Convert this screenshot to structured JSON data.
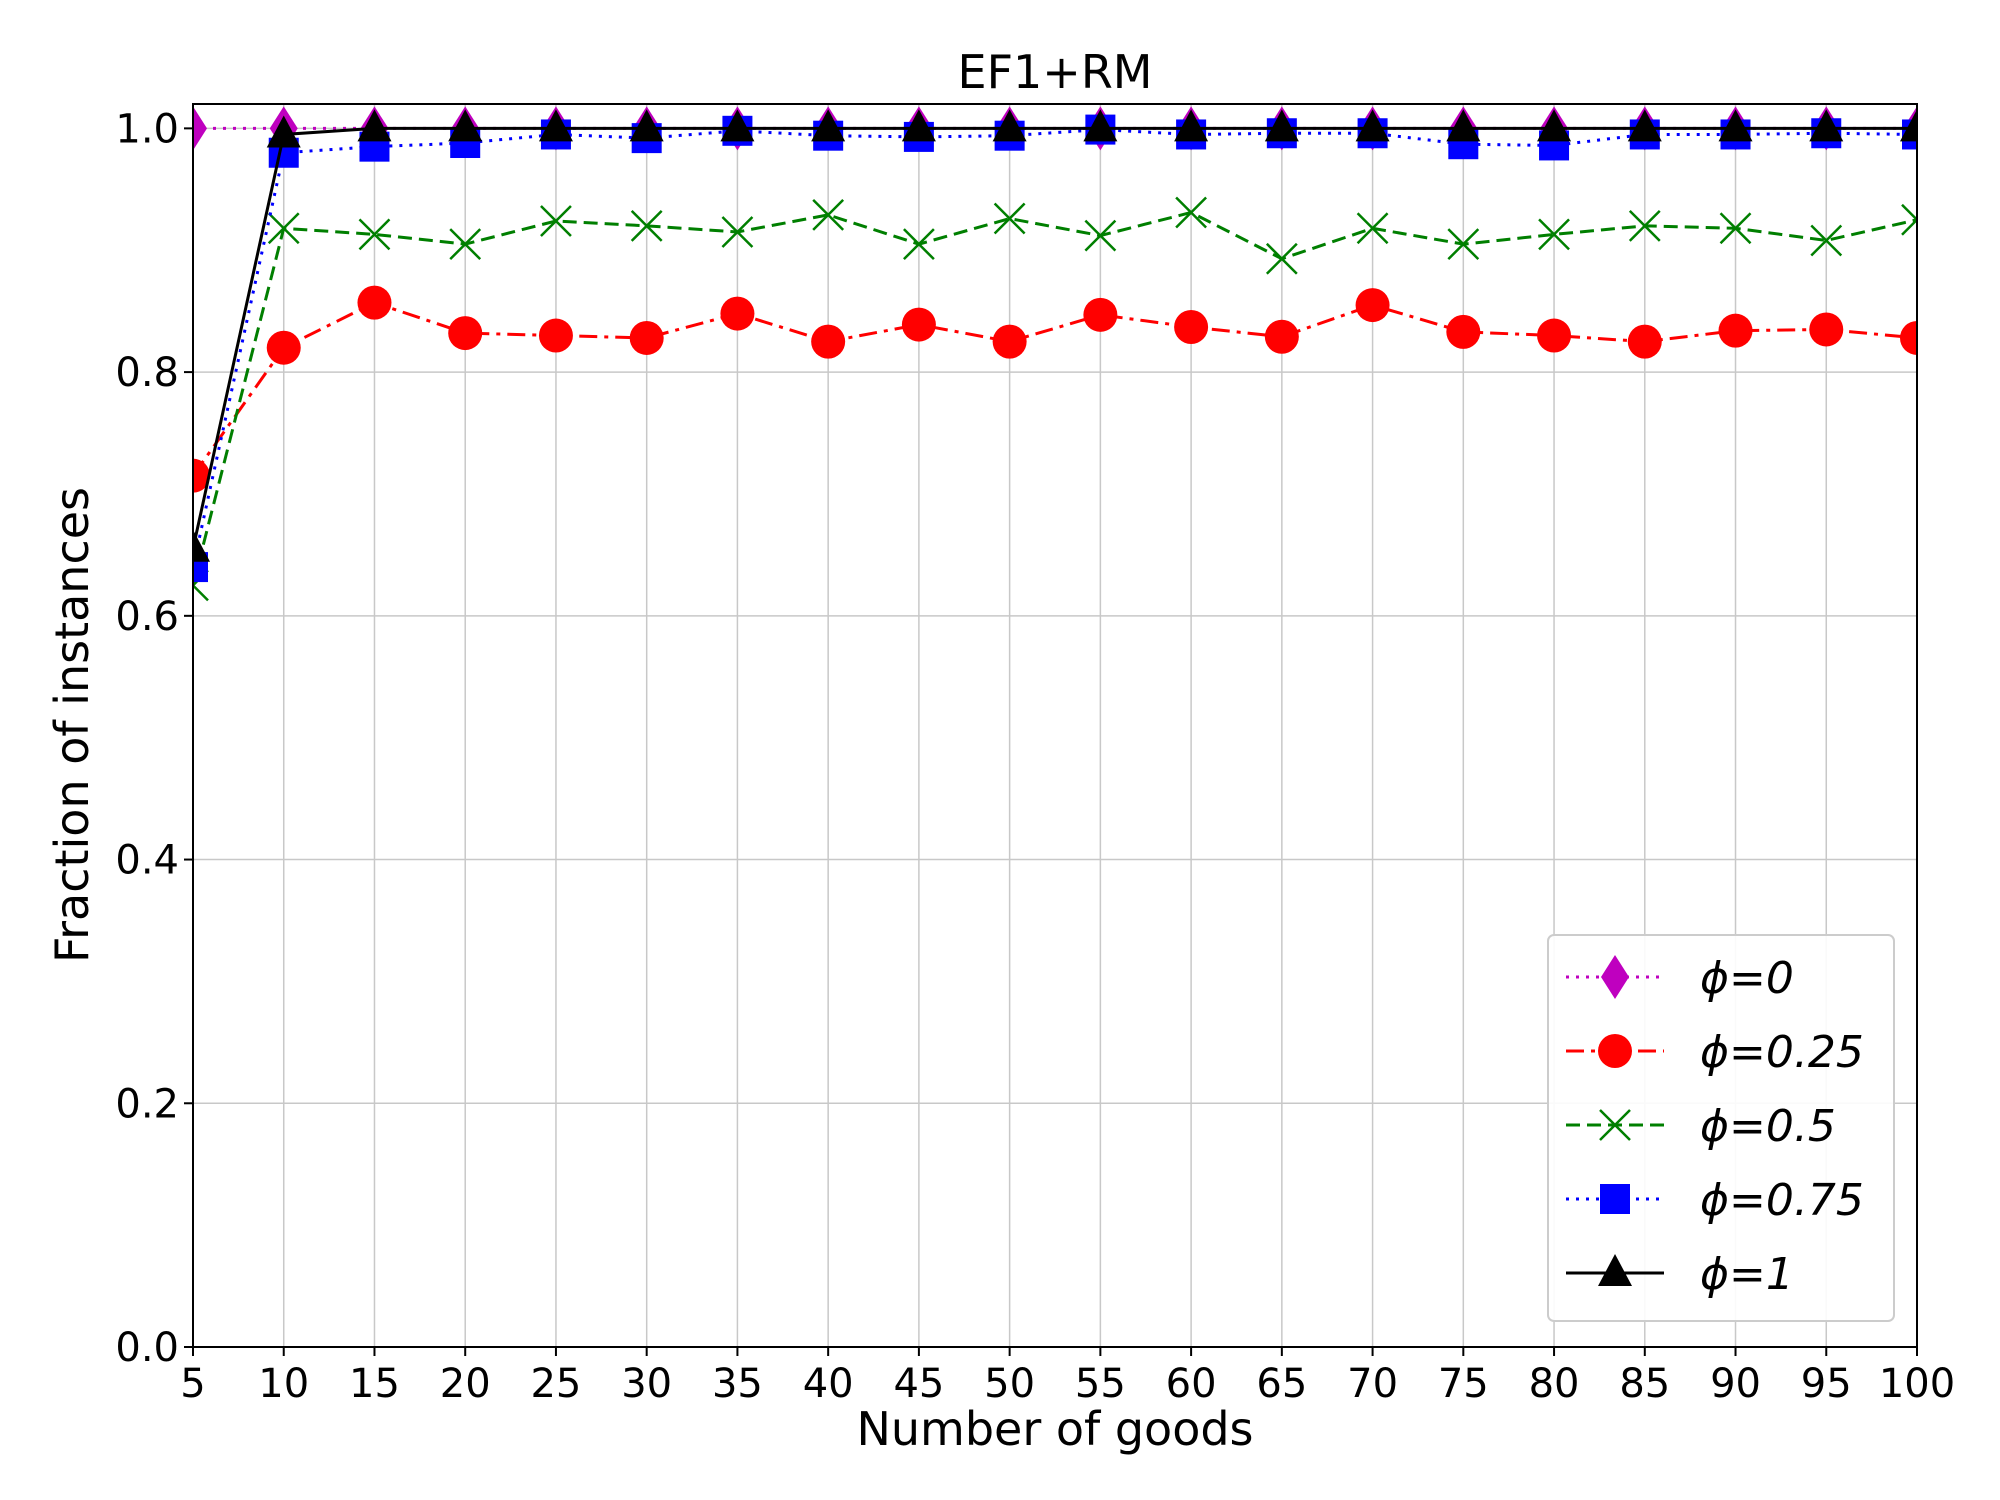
{
  "chart_data": {
    "type": "line",
    "title": "EF1+RM",
    "xlabel": "Number of goods",
    "ylabel": "Fraction of instances",
    "x": [
      5,
      10,
      15,
      20,
      25,
      30,
      35,
      40,
      45,
      50,
      55,
      60,
      65,
      70,
      75,
      80,
      85,
      90,
      95,
      100
    ],
    "xlim": [
      5,
      100
    ],
    "ylim": [
      0.0,
      1.02
    ],
    "xticks": [
      "5",
      "10",
      "15",
      "20",
      "25",
      "30",
      "35",
      "40",
      "45",
      "50",
      "55",
      "60",
      "65",
      "70",
      "75",
      "80",
      "85",
      "90",
      "95",
      "100"
    ],
    "yticks": [
      "0.0",
      "0.2",
      "0.4",
      "0.6",
      "0.8",
      "1.0"
    ],
    "grid": true,
    "legend_position": "bottom-right",
    "series": [
      {
        "name": "ϕ=0",
        "color": "#bf00bf",
        "line_style": "dotted",
        "marker": "diamond",
        "values": [
          1.0,
          1.0,
          1.0,
          1.0,
          1.0,
          1.0,
          1.0,
          1.0,
          1.0,
          1.0,
          1.0,
          1.0,
          1.0,
          1.0,
          1.0,
          1.0,
          1.0,
          1.0,
          1.0,
          1.0
        ]
      },
      {
        "name": "ϕ=0.25",
        "color": "#ff0000",
        "line_style": "dashdot",
        "marker": "circle",
        "values": [
          0.715,
          0.82,
          0.857,
          0.832,
          0.83,
          0.828,
          0.848,
          0.825,
          0.839,
          0.825,
          0.847,
          0.837,
          0.829,
          0.855,
          0.833,
          0.83,
          0.825,
          0.834,
          0.835,
          0.828
        ]
      },
      {
        "name": "ϕ=0.5",
        "color": "#007f00",
        "line_style": "dashed",
        "marker": "x",
        "values": [
          0.625,
          0.918,
          0.913,
          0.905,
          0.924,
          0.92,
          0.915,
          0.929,
          0.905,
          0.926,
          0.912,
          0.931,
          0.893,
          0.918,
          0.905,
          0.913,
          0.92,
          0.918,
          0.908,
          0.925
        ]
      },
      {
        "name": "ϕ=0.75",
        "color": "#0000ff",
        "line_style": "dotted",
        "marker": "square",
        "values": [
          0.64,
          0.98,
          0.985,
          0.988,
          0.995,
          0.992,
          0.998,
          0.994,
          0.993,
          0.994,
          0.999,
          0.995,
          0.996,
          0.996,
          0.987,
          0.986,
          0.995,
          0.995,
          0.996,
          0.995
        ]
      },
      {
        "name": "ϕ=1",
        "color": "#000000",
        "line_style": "solid",
        "marker": "triangle",
        "values": [
          0.655,
          0.995,
          1.0,
          1.0,
          1.0,
          1.0,
          1.0,
          1.0,
          1.0,
          1.0,
          1.0,
          1.0,
          1.0,
          1.0,
          1.0,
          1.0,
          1.0,
          1.0,
          1.0,
          1.0
        ]
      }
    ]
  }
}
